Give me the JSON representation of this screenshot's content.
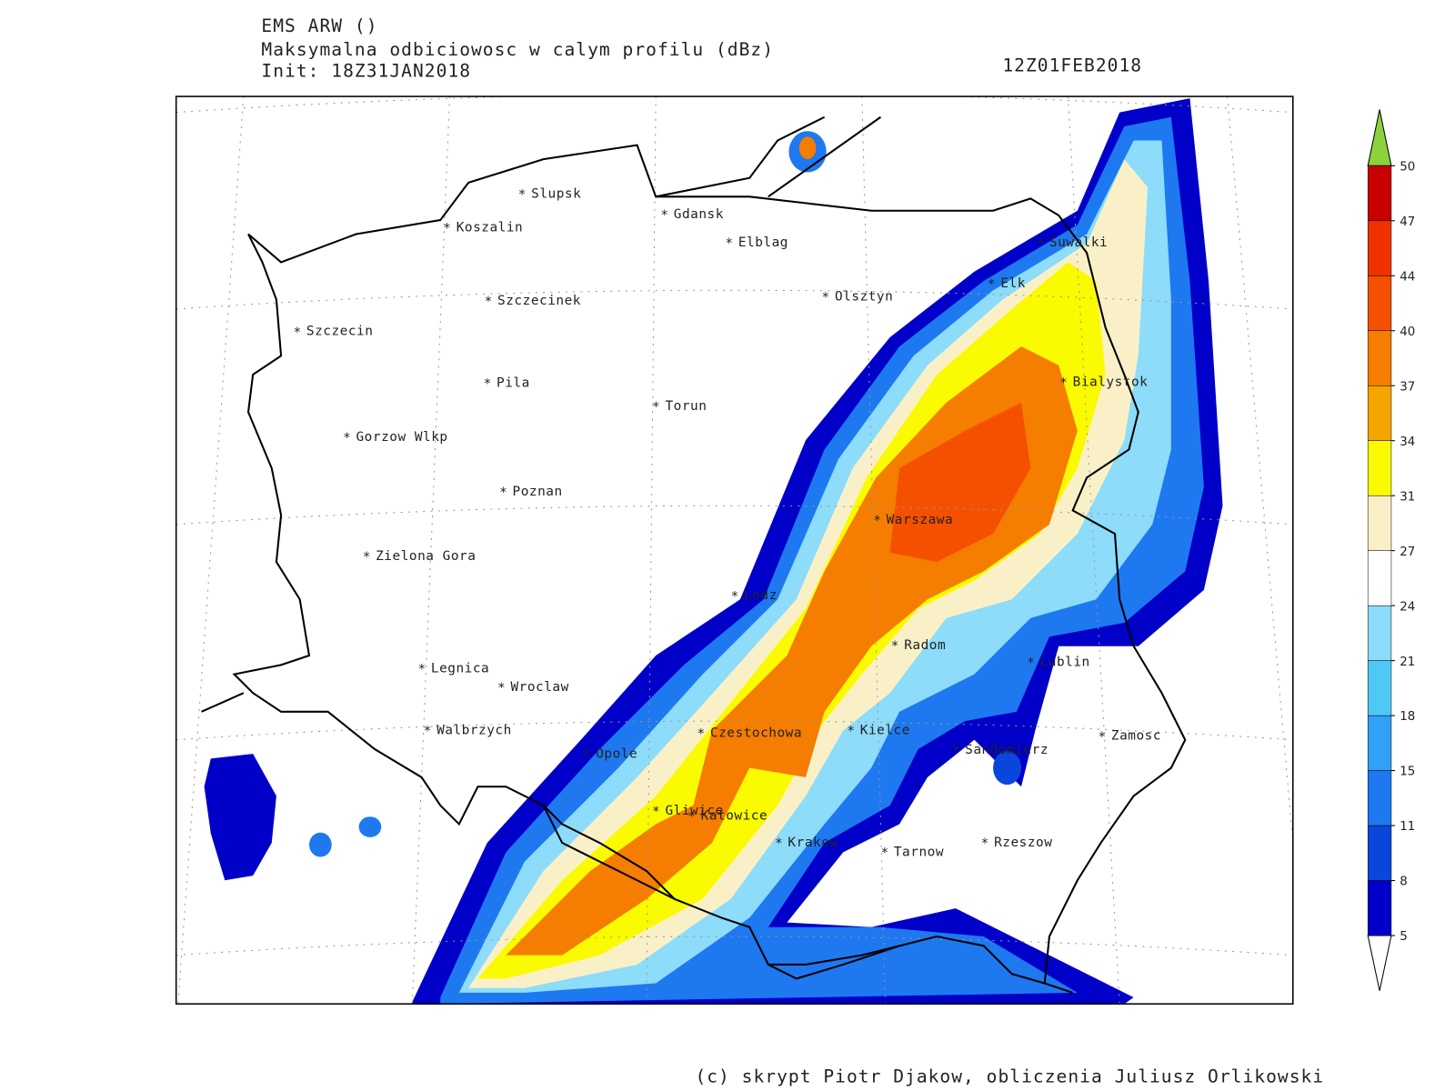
{
  "header": {
    "model": "EMS ARW ()",
    "field": "Maksymalna odbiciowosc w calym profilu (dBz)",
    "init": "Init: 18Z31JAN2018",
    "valid_time": "12Z01FEB2018"
  },
  "cities": [
    "Slupsk",
    "Koszalin",
    "Gdansk",
    "Elblag",
    "Suwalki",
    "Elk",
    "Szczecinek",
    "Olsztyn",
    "Szczecin",
    "Bialystok",
    "Pila",
    "Torun",
    "Gorzow Wlkp",
    "Poznan",
    "Warszawa",
    "Zielona Gora",
    "Lodz",
    "Radom",
    "Lublin",
    "Legnica",
    "Wroclaw",
    "Walbrzych",
    "Czestochowa",
    "Kielce",
    "Zamosc",
    "Opole",
    "Sandomierz",
    "Gliwice",
    "Katowice",
    "Krakow",
    "Tarnow",
    "Rzeszow"
  ],
  "colorbar": {
    "levels": [
      5,
      8,
      11,
      15,
      18,
      21,
      24,
      27,
      31,
      34,
      37,
      40,
      44,
      47,
      50
    ],
    "colors": [
      "#0000c8",
      "#0a46dc",
      "#1e78f0",
      "#32a0f5",
      "#50c8f5",
      "#8cdcfa",
      "#ffffff",
      "#faf0c8",
      "#fafa00",
      "#f5a500",
      "#f57d00",
      "#f55000",
      "#f03200",
      "#c80000"
    ],
    "over_color": "#8cd23c",
    "under_color": "#ffffff"
  },
  "footer": "(c) skrypt Piotr Djakow, obliczenia Juliusz Orlikowski"
}
